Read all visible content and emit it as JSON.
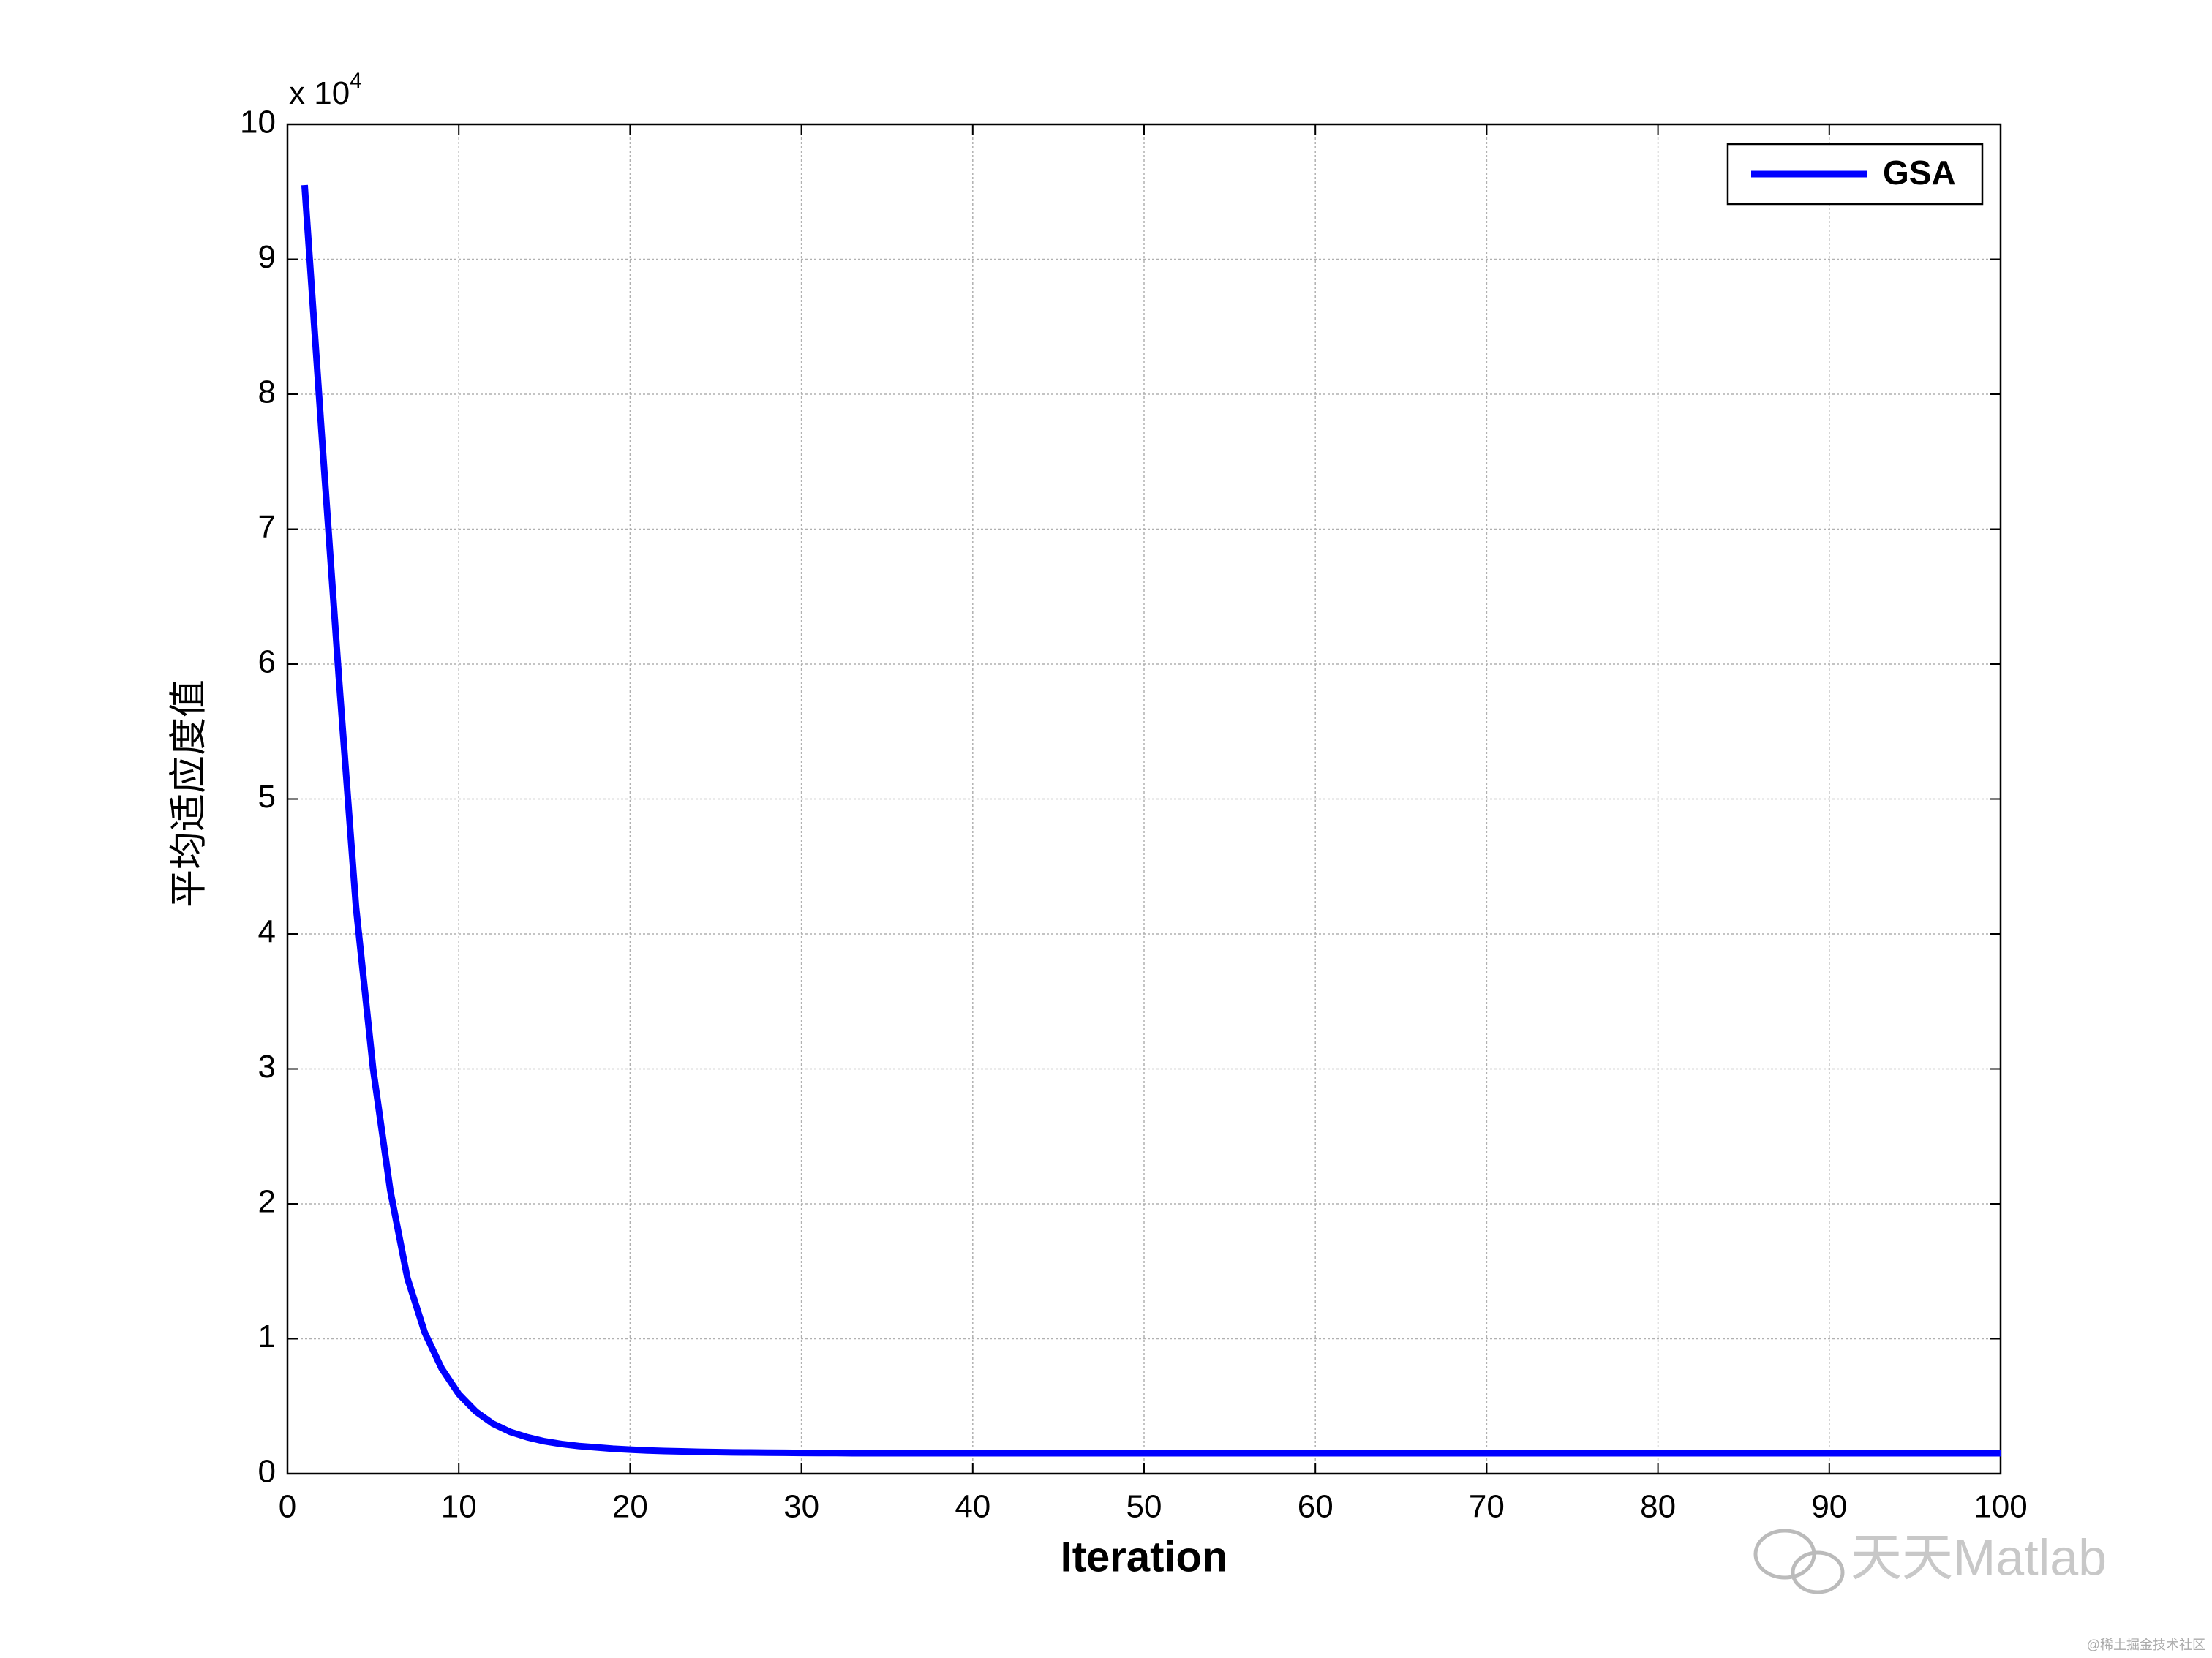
{
  "chart_data": {
    "type": "line",
    "ylabel": "平均适应度值",
    "xlabel": "Iteration",
    "y_exponent_base": "x 10",
    "y_exponent": "4",
    "x": [
      1,
      2,
      3,
      4,
      5,
      6,
      7,
      8,
      9,
      10,
      11,
      12,
      13,
      14,
      15,
      16,
      17,
      18,
      19,
      20,
      21,
      22,
      23,
      24,
      25,
      26,
      27,
      28,
      29,
      30,
      31,
      32,
      33,
      34,
      35,
      36,
      37,
      38,
      39,
      40,
      41,
      42,
      43,
      44,
      45,
      46,
      47,
      48,
      49,
      50,
      51,
      52,
      53,
      54,
      55,
      56,
      57,
      58,
      59,
      60,
      61,
      62,
      63,
      64,
      65,
      66,
      67,
      68,
      69,
      70,
      71,
      72,
      73,
      74,
      75,
      76,
      77,
      78,
      79,
      80,
      81,
      82,
      83,
      84,
      85,
      86,
      87,
      88,
      89,
      90,
      91,
      92,
      93,
      94,
      95,
      96,
      97,
      98,
      99,
      100
    ],
    "series": [
      {
        "name": "GSA",
        "color": "#0000ff",
        "values": [
          9.55,
          7.7,
          5.9,
          4.2,
          3.0,
          2.1,
          1.45,
          1.05,
          0.78,
          0.59,
          0.46,
          0.37,
          0.31,
          0.27,
          0.24,
          0.22,
          0.205,
          0.195,
          0.185,
          0.178,
          0.172,
          0.168,
          0.165,
          0.162,
          0.16,
          0.158,
          0.157,
          0.156,
          0.155,
          0.154,
          0.153,
          0.153,
          0.152,
          0.152,
          0.152,
          0.152,
          0.152,
          0.152,
          0.152,
          0.152,
          0.152,
          0.152,
          0.152,
          0.152,
          0.152,
          0.152,
          0.152,
          0.152,
          0.152,
          0.152,
          0.152,
          0.152,
          0.152,
          0.152,
          0.152,
          0.152,
          0.152,
          0.152,
          0.152,
          0.152,
          0.152,
          0.152,
          0.152,
          0.152,
          0.152,
          0.152,
          0.152,
          0.152,
          0.152,
          0.152,
          0.152,
          0.152,
          0.152,
          0.152,
          0.152,
          0.152,
          0.152,
          0.152,
          0.152,
          0.152,
          0.152,
          0.152,
          0.152,
          0.152,
          0.152,
          0.152,
          0.152,
          0.152,
          0.152,
          0.152,
          0.152,
          0.152,
          0.152,
          0.152,
          0.152,
          0.152,
          0.152,
          0.152,
          0.152,
          0.152
        ]
      }
    ],
    "xlim": [
      0,
      100
    ],
    "xticks": [
      0,
      10,
      20,
      30,
      40,
      50,
      60,
      70,
      80,
      90,
      100
    ],
    "ylim": [
      0,
      10
    ],
    "yticks": [
      0,
      1,
      2,
      3,
      4,
      5,
      6,
      7,
      8,
      9,
      10
    ],
    "grid": true,
    "legend_position": "upper-right",
    "watermark": "天天Matlab",
    "source_note": "@稀土掘金技术社区"
  }
}
